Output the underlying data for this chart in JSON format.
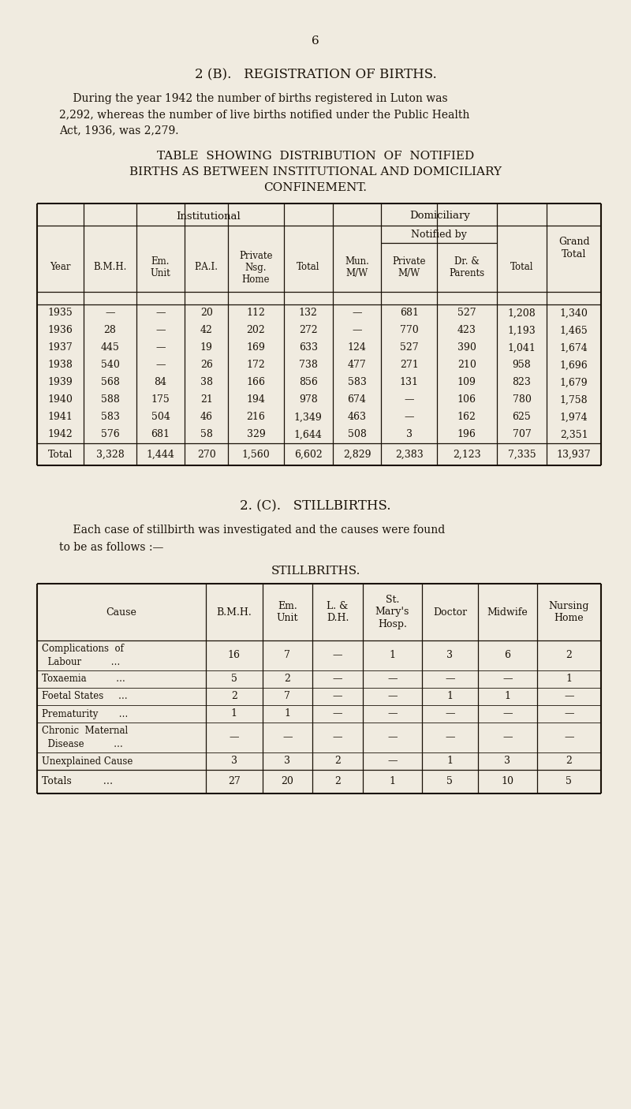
{
  "page_number": "6",
  "section_b_title": "2 (B).   REGISTRATION OF BIRTHS.",
  "section_b_text_lines": [
    "    During the year 1942 the number of births registered in Luton was",
    "2,292, whereas the number of live births notified under the Public Health",
    "Act, 1936, was 2,279."
  ],
  "table1_title_lines": [
    "TABLE  SHOWING  DISTRIBUTION  OF  NOTIFIED",
    "BIRTHS AS BETWEEN INSTITUTIONAL AND DOMICILIARY",
    "CONFINEMENT."
  ],
  "table1_data": [
    [
      "1935",
      "—",
      "—",
      "20",
      "112",
      "132",
      "—",
      "681",
      "527",
      "1,208",
      "1,340"
    ],
    [
      "1936",
      "28",
      "—",
      "42",
      "202",
      "272",
      "—",
      "770",
      "423",
      "1,193",
      "1,465"
    ],
    [
      "1937",
      "445",
      "—",
      "19",
      "169",
      "633",
      "124",
      "527",
      "390",
      "1,041",
      "1,674"
    ],
    [
      "1938",
      "540",
      "—",
      "26",
      "172",
      "738",
      "477",
      "271",
      "210",
      "958",
      "1,696"
    ],
    [
      "1939",
      "568",
      "84",
      "38",
      "166",
      "856",
      "583",
      "131",
      "109",
      "823",
      "1,679"
    ],
    [
      "1940",
      "588",
      "175",
      "21",
      "194",
      "978",
      "674",
      "—",
      "106",
      "780",
      "1,758"
    ],
    [
      "1941",
      "583",
      "504",
      "46",
      "216",
      "1,349",
      "463",
      "—",
      "162",
      "625",
      "1,974"
    ],
    [
      "1942",
      "576",
      "681",
      "58",
      "329",
      "1,644",
      "508",
      "3",
      "196",
      "707",
      "2,351"
    ]
  ],
  "table1_total": [
    "Total",
    "3,328",
    "1,444",
    "270",
    "1,560",
    "6,602",
    "2,829",
    "2,383",
    "2,123",
    "7,335",
    "13,937"
  ],
  "section_c_title": "2. (C).   STILLBIRTHS.",
  "section_c_text_lines": [
    "    Each case of stillbirth was investigated and the causes were found",
    "to be as follows :—"
  ],
  "table2_title": "STILLBRITHS.",
  "table2_cause_rows": [
    {
      "lines": [
        "Complications  of",
        "  Labour          …"
      ],
      "vals": [
        "16",
        "7",
        "—",
        "1",
        "3",
        "6",
        "2"
      ]
    },
    {
      "lines": [
        "Toxaemia          …"
      ],
      "vals": [
        "5",
        "2",
        "—",
        "—",
        "—",
        "—",
        "1"
      ]
    },
    {
      "lines": [
        "Foetal States     …"
      ],
      "vals": [
        "2",
        "7",
        "—",
        "—",
        "1",
        "1",
        "—"
      ]
    },
    {
      "lines": [
        "Prematurity       …"
      ],
      "vals": [
        "1",
        "1",
        "—",
        "—",
        "—",
        "—",
        "—"
      ]
    },
    {
      "lines": [
        "Chronic  Maternal",
        "  Disease          …"
      ],
      "vals": [
        "—",
        "—",
        "—",
        "—",
        "—",
        "—",
        "—"
      ]
    },
    {
      "lines": [
        "Unexplained Cause"
      ],
      "vals": [
        "3",
        "3",
        "2",
        "—",
        "1",
        "3",
        "2"
      ]
    }
  ],
  "table2_total_vals": [
    "27",
    "20",
    "2",
    "1",
    "5",
    "10",
    "5"
  ],
  "bg_color": "#f0ebe0",
  "text_color": "#1a1208",
  "line_color": "#1a1208"
}
